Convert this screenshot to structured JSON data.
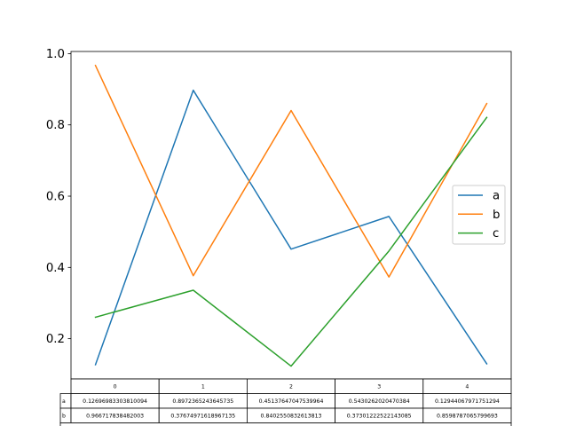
{
  "chart_data": {
    "type": "line",
    "title": "",
    "xlabel": "",
    "ylabel": "",
    "x": [
      0,
      1,
      2,
      3,
      4
    ],
    "xlim": [
      -0.25,
      4.25
    ],
    "ylim": [
      0.087,
      1.006
    ],
    "yticks": [
      "0.2",
      "0.4",
      "0.6",
      "0.8",
      "1.0"
    ],
    "ytick_values": [
      0.2,
      0.4,
      0.6,
      0.8,
      1.0
    ],
    "grid": false,
    "legend_position": "center-right",
    "series": [
      {
        "name": "a",
        "color": "#1f77b4",
        "values": [
          0.12696983303810094,
          0.8972365243645735,
          0.45137647047539964,
          0.5430262020470384,
          0.12944067971751294
        ]
      },
      {
        "name": "b",
        "color": "#ff7f0e",
        "values": [
          0.966717838482003,
          0.37674971618967135,
          0.8402550832613813,
          0.37301222522143085,
          0.8598787065799693
        ]
      },
      {
        "name": "c",
        "color": "#2ca02c",
        "values": [
          0.2603,
          0.336,
          0.123,
          0.446,
          0.821
        ]
      }
    ],
    "table": {
      "col_labels": [
        "0",
        "1",
        "2",
        "3",
        "4"
      ],
      "row_labels": [
        "a",
        "b"
      ],
      "cells": [
        [
          "0.12696983303810094",
          "0.8972365243645735",
          "0.45137647047539964",
          "0.5430262020470384",
          "0.12944067971751294"
        ],
        [
          "0.966717838482003",
          "0.37674971618967135",
          "0.8402550832613813",
          "0.37301222522143085",
          "0.8598787065799693"
        ]
      ]
    }
  }
}
